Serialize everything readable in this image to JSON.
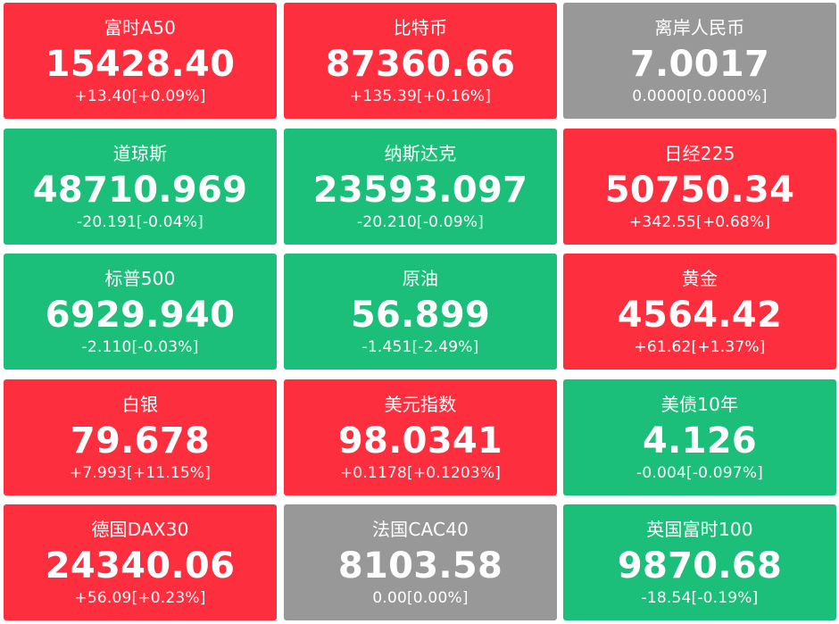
{
  "colors": {
    "up": "#fd2f3f",
    "down": "#1cbf79",
    "flat": "#989898",
    "text": "#ffffff"
  },
  "tiles": [
    {
      "name": "富时A50",
      "price": "15428.40",
      "change": "+13.40[+0.09%]",
      "trend": "up"
    },
    {
      "name": "比特币",
      "price": "87360.66",
      "change": "+135.39[+0.16%]",
      "trend": "up"
    },
    {
      "name": "离岸人民币",
      "price": "7.0017",
      "change": "0.0000[0.0000%]",
      "trend": "flat"
    },
    {
      "name": "道琼斯",
      "price": "48710.969",
      "change": "-20.191[-0.04%]",
      "trend": "down"
    },
    {
      "name": "纳斯达克",
      "price": "23593.097",
      "change": "-20.210[-0.09%]",
      "trend": "down"
    },
    {
      "name": "日经225",
      "price": "50750.34",
      "change": "+342.55[+0.68%]",
      "trend": "up"
    },
    {
      "name": "标普500",
      "price": "6929.940",
      "change": "-2.110[-0.03%]",
      "trend": "down"
    },
    {
      "name": "原油",
      "price": "56.899",
      "change": "-1.451[-2.49%]",
      "trend": "down"
    },
    {
      "name": "黄金",
      "price": "4564.42",
      "change": "+61.62[+1.37%]",
      "trend": "up"
    },
    {
      "name": "白银",
      "price": "79.678",
      "change": "+7.993[+11.15%]",
      "trend": "up"
    },
    {
      "name": "美元指数",
      "price": "98.0341",
      "change": "+0.1178[+0.1203%]",
      "trend": "up"
    },
    {
      "name": "美债10年",
      "price": "4.126",
      "change": "-0.004[-0.097%]",
      "trend": "down"
    },
    {
      "name": "德国DAX30",
      "price": "24340.06",
      "change": "+56.09[+0.23%]",
      "trend": "up"
    },
    {
      "name": "法国CAC40",
      "price": "8103.58",
      "change": "0.00[0.00%]",
      "trend": "flat"
    },
    {
      "name": "英国富时100",
      "price": "9870.68",
      "change": "-18.54[-0.19%]",
      "trend": "down"
    }
  ]
}
